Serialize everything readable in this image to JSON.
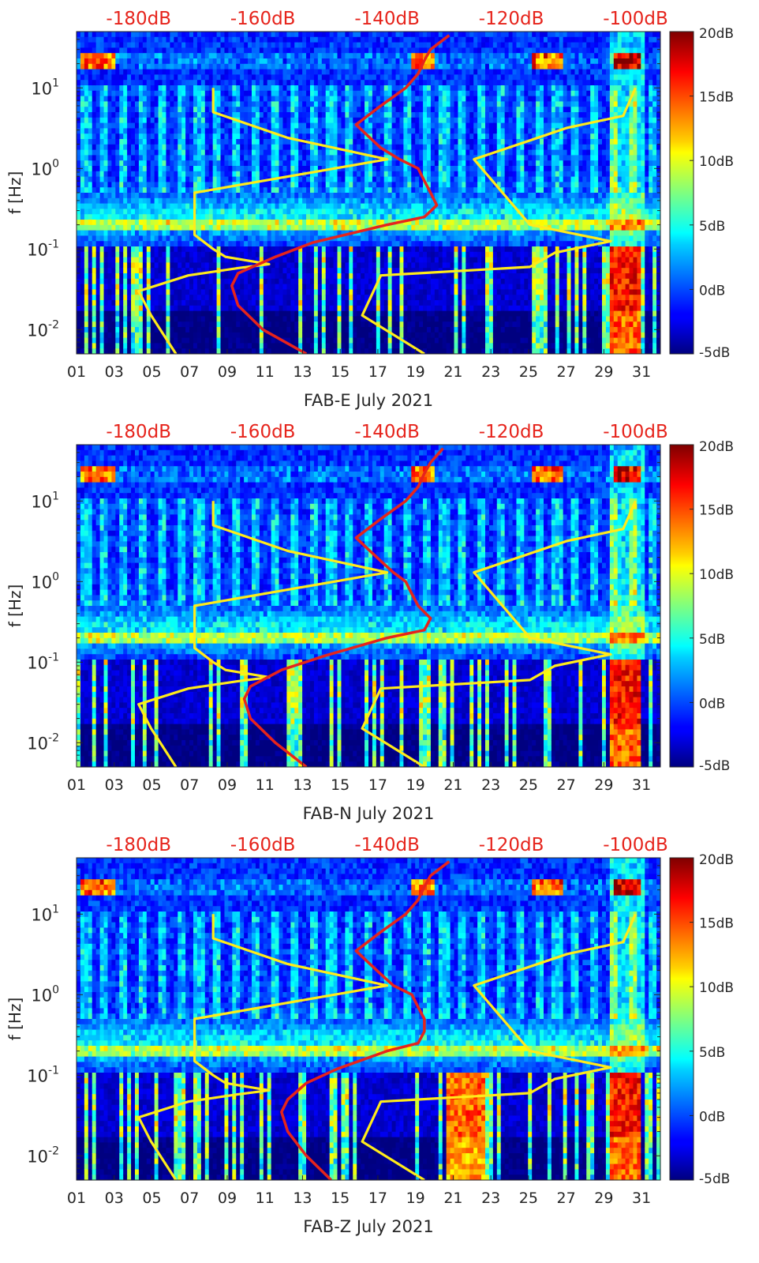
{
  "chart_data": [
    {
      "type": "heatmap",
      "station": "FAB-E",
      "xlabel": "FAB-E July 2021",
      "ylabel": "f [Hz]",
      "x_ticks": [
        "01",
        "03",
        "05",
        "07",
        "09",
        "11",
        "13",
        "15",
        "17",
        "19",
        "21",
        "23",
        "25",
        "27",
        "29",
        "31"
      ],
      "x_range_days": [
        1,
        32
      ],
      "y_ticks": [
        {
          "label": "10",
          "exp": "-2",
          "value": 0.01
        },
        {
          "label": "10",
          "exp": "-1",
          "value": 0.1
        },
        {
          "label": "10",
          "exp": "0",
          "value": 1
        },
        {
          "label": "10",
          "exp": "1",
          "value": 10
        }
      ],
      "y_range_hz": [
        0.005,
        50
      ],
      "top_axis_ticks": [
        "-180dB",
        "-160dB",
        "-140dB",
        "-120dB",
        "-100dB"
      ],
      "top_axis_values": [
        -180,
        -160,
        -140,
        -120,
        -100
      ],
      "top_axis_range_db": [
        -190,
        -96
      ],
      "colorbar_ticks": [
        "20dB",
        "15dB",
        "10dB",
        "5dB",
        "0dB",
        "-5dB"
      ],
      "colorbar_values": [
        20,
        15,
        10,
        5,
        0,
        -5
      ],
      "colorbar_range_db": [
        -5,
        20
      ],
      "series": [
        {
          "name": "noise model low (yellow)",
          "color": "#ffeb1a",
          "db": [
            -174,
            -178,
            -180,
            -172,
            -164,
            -159,
            -166,
            -168,
            -171,
            -171,
            -171,
            -140,
            -156,
            -168,
            -168
          ],
          "freq_hz": [
            0.005,
            0.015,
            0.03,
            0.047,
            0.058,
            0.065,
            0.08,
            0.1,
            0.15,
            0.2,
            0.5,
            1.3,
            2.4,
            5,
            10
          ]
        },
        {
          "name": "noise model high (yellow)",
          "color": "#ffeb1a",
          "db": [
            -134,
            -144,
            -141,
            -117,
            -113,
            -104,
            -117,
            -126,
            -111,
            -102,
            -100
          ],
          "freq_hz": [
            0.005,
            0.015,
            0.047,
            0.06,
            0.09,
            0.125,
            0.2,
            1.3,
            3.2,
            4.5,
            10
          ]
        },
        {
          "name": "median PSD (red)",
          "color": "#e6241c",
          "db": [
            -153,
            -160,
            -164,
            -165,
            -164,
            -158,
            -152,
            -140,
            -134,
            -132,
            -133,
            -134,
            -135,
            -138,
            -141,
            -143,
            -145,
            -141,
            -137,
            -135,
            -134,
            -133,
            -130
          ],
          "freq_hz": [
            0.005,
            0.01,
            0.02,
            0.035,
            0.05,
            0.08,
            0.12,
            0.2,
            0.25,
            0.35,
            0.5,
            0.7,
            1,
            1.3,
            1.8,
            2.5,
            3.5,
            6,
            10,
            15,
            22,
            30,
            45
          ]
        }
      ]
    },
    {
      "type": "heatmap",
      "station": "FAB-N",
      "xlabel": "FAB-N July 2021",
      "ylabel": "f [Hz]",
      "x_ticks": [
        "01",
        "03",
        "05",
        "07",
        "09",
        "11",
        "13",
        "15",
        "17",
        "19",
        "21",
        "23",
        "25",
        "27",
        "29",
        "31"
      ],
      "x_range_days": [
        1,
        32
      ],
      "y_ticks": [
        {
          "label": "10",
          "exp": "-2",
          "value": 0.01
        },
        {
          "label": "10",
          "exp": "-1",
          "value": 0.1
        },
        {
          "label": "10",
          "exp": "0",
          "value": 1
        },
        {
          "label": "10",
          "exp": "1",
          "value": 10
        }
      ],
      "y_range_hz": [
        0.005,
        50
      ],
      "top_axis_ticks": [
        "-180dB",
        "-160dB",
        "-140dB",
        "-120dB",
        "-100dB"
      ],
      "top_axis_values": [
        -180,
        -160,
        -140,
        -120,
        -100
      ],
      "top_axis_range_db": [
        -190,
        -96
      ],
      "colorbar_ticks": [
        "20dB",
        "15dB",
        "10dB",
        "5dB",
        "0dB",
        "-5dB"
      ],
      "colorbar_values": [
        20,
        15,
        10,
        5,
        0,
        -5
      ],
      "colorbar_range_db": [
        -5,
        20
      ],
      "series": [
        {
          "name": "noise model low (yellow)",
          "color": "#ffeb1a",
          "db": [
            -174,
            -178,
            -180,
            -172,
            -164,
            -159,
            -166,
            -168,
            -171,
            -171,
            -171,
            -140,
            -156,
            -168,
            -168
          ],
          "freq_hz": [
            0.005,
            0.015,
            0.03,
            0.047,
            0.058,
            0.065,
            0.08,
            0.1,
            0.15,
            0.2,
            0.5,
            1.3,
            2.4,
            5,
            10
          ]
        },
        {
          "name": "noise model high (yellow)",
          "color": "#ffeb1a",
          "db": [
            -134,
            -144,
            -141,
            -117,
            -113,
            -104,
            -117,
            -126,
            -111,
            -102,
            -100
          ],
          "freq_hz": [
            0.005,
            0.015,
            0.047,
            0.06,
            0.09,
            0.125,
            0.2,
            1.3,
            3.2,
            4.5,
            10
          ]
        },
        {
          "name": "median PSD (red)",
          "color": "#e6241c",
          "db": [
            -153,
            -158,
            -162,
            -163,
            -162,
            -157,
            -150,
            -140,
            -134,
            -133,
            -135,
            -136,
            -137,
            -139,
            -141,
            -143,
            -145,
            -141,
            -137,
            -135,
            -134,
            -133,
            -131
          ],
          "freq_hz": [
            0.005,
            0.01,
            0.02,
            0.035,
            0.05,
            0.08,
            0.12,
            0.2,
            0.25,
            0.35,
            0.5,
            0.7,
            1,
            1.3,
            1.8,
            2.5,
            3.5,
            6,
            10,
            15,
            22,
            30,
            45
          ]
        }
      ]
    },
    {
      "type": "heatmap",
      "station": "FAB-Z",
      "xlabel": "FAB-Z July 2021",
      "ylabel": "f [Hz]",
      "x_ticks": [
        "01",
        "03",
        "05",
        "07",
        "09",
        "11",
        "13",
        "15",
        "17",
        "19",
        "21",
        "23",
        "25",
        "27",
        "29",
        "31"
      ],
      "x_range_days": [
        1,
        32
      ],
      "y_ticks": [
        {
          "label": "10",
          "exp": "-2",
          "value": 0.01
        },
        {
          "label": "10",
          "exp": "-1",
          "value": 0.1
        },
        {
          "label": "10",
          "exp": "0",
          "value": 1
        },
        {
          "label": "10",
          "exp": "1",
          "value": 10
        }
      ],
      "y_range_hz": [
        0.005,
        50
      ],
      "top_axis_ticks": [
        "-180dB",
        "-160dB",
        "-140dB",
        "-120dB",
        "-100dB"
      ],
      "top_axis_values": [
        -180,
        -160,
        -140,
        -120,
        -100
      ],
      "top_axis_range_db": [
        -190,
        -96
      ],
      "colorbar_ticks": [
        "20dB",
        "15dB",
        "10dB",
        "5dB",
        "0dB",
        "-5dB"
      ],
      "colorbar_values": [
        20,
        15,
        10,
        5,
        0,
        -5
      ],
      "colorbar_range_db": [
        -5,
        20
      ],
      "series": [
        {
          "name": "noise model low (yellow)",
          "color": "#ffeb1a",
          "db": [
            -174,
            -178,
            -180,
            -172,
            -164,
            -159,
            -166,
            -168,
            -171,
            -171,
            -171,
            -140,
            -156,
            -168,
            -168
          ],
          "freq_hz": [
            0.005,
            0.015,
            0.03,
            0.047,
            0.058,
            0.065,
            0.08,
            0.1,
            0.15,
            0.2,
            0.5,
            1.3,
            2.4,
            5,
            10
          ]
        },
        {
          "name": "noise model high (yellow)",
          "color": "#ffeb1a",
          "db": [
            -134,
            -144,
            -141,
            -117,
            -113,
            -104,
            -117,
            -126,
            -111,
            -102,
            -100
          ],
          "freq_hz": [
            0.005,
            0.015,
            0.047,
            0.06,
            0.09,
            0.125,
            0.2,
            1.3,
            3.2,
            4.5,
            10
          ]
        },
        {
          "name": "median PSD (red)",
          "color": "#e6241c",
          "db": [
            -149,
            -153,
            -156,
            -157,
            -156,
            -153,
            -148,
            -140,
            -135,
            -134,
            -134,
            -135,
            -136,
            -139,
            -141,
            -143,
            -145,
            -141,
            -137,
            -135,
            -134,
            -133,
            -130
          ],
          "freq_hz": [
            0.005,
            0.01,
            0.02,
            0.035,
            0.05,
            0.08,
            0.12,
            0.2,
            0.25,
            0.35,
            0.5,
            0.7,
            1,
            1.3,
            1.8,
            2.5,
            3.5,
            6,
            10,
            15,
            22,
            30,
            45
          ]
        }
      ]
    }
  ]
}
